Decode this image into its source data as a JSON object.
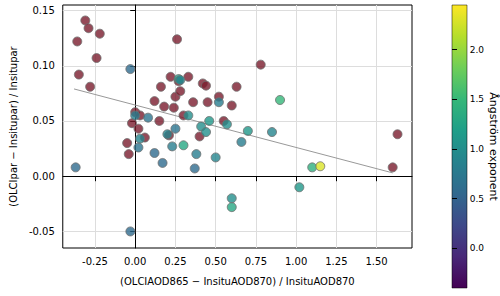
{
  "chart_data": {
    "type": "scatter",
    "x_label": "(OLCIAOD865 − InsituAOD870) / InsituAOD870",
    "y_label": "(OLCIpar − Insitupar) / Insitupar",
    "xlim": [
      -0.45,
      1.72
    ],
    "xticks": [
      -0.25,
      {
        "value": 0,
        "label": "0.00"
      },
      0.25,
      {
        "value": 0.5,
        "label": "0.50"
      },
      0.75,
      {
        "value": 1,
        "label": "1.00"
      },
      1.25,
      {
        "value": 1.5,
        "label": "1.50"
      }
    ],
    "ylim": [
      -0.065,
      0.155
    ],
    "yticks": [
      -0.05,
      {
        "value": 0,
        "label": "0.00"
      },
      0.05,
      {
        "value": 0.1,
        "label": "0.10"
      },
      0.15
    ],
    "grid": true,
    "colorbar": {
      "title": "Ångström exponent",
      "range": [
        -0.4,
        2.45
      ],
      "ticks": [
        {
          "value": 0,
          "label": "0.0"
        },
        {
          "value": 0.5,
          "label": "0.5"
        },
        {
          "value": 1,
          "label": "1.0"
        },
        {
          "value": 1.5,
          "label": "1.5"
        },
        {
          "value": 2,
          "label": "2.0"
        }
      ],
      "colors": [
        "#440154",
        "#482878",
        "#3e4989",
        "#31688e",
        "#26828e",
        "#1f9e89",
        "#35b779",
        "#6ece58",
        "#b5de2b",
        "#fde725"
      ]
    },
    "series": [
      {
        "type": "scatter",
        "color": "#7b1d2e",
        "x": [
          -0.36,
          -0.35,
          -0.31,
          -0.29,
          -0.28,
          -0.22,
          -0.24,
          -0.05,
          -0.04,
          -0.02,
          0.0,
          0.02,
          0.03,
          0.06,
          0.12,
          0.15,
          0.16,
          0.18,
          0.22,
          0.24,
          0.25,
          0.26,
          0.27,
          0.28,
          0.3,
          0.33,
          0.36,
          0.42,
          0.44,
          0.45,
          0.52,
          0.55,
          0.6,
          0.63,
          0.78,
          1.6,
          1.63,
          0.4,
          0.21
        ],
        "y": [
          0.122,
          0.092,
          0.141,
          0.134,
          0.081,
          0.129,
          0.107,
          0.03,
          0.02,
          0.048,
          0.058,
          0.043,
          0.055,
          0.035,
          0.068,
          0.05,
          0.081,
          0.063,
          0.09,
          0.062,
          0.072,
          0.124,
          0.086,
          0.077,
          0.055,
          0.09,
          0.067,
          0.084,
          0.082,
          0.067,
          0.072,
          0.05,
          0.064,
          0.081,
          0.101,
          0.008,
          0.038,
          0.036,
          0.037
        ]
      },
      {
        "type": "scatter",
        "x": [
          -0.37,
          -0.03,
          -0.03,
          0.0,
          0.02,
          0.03,
          0.08,
          0.12,
          0.17,
          0.2,
          0.23,
          0.25,
          0.27,
          0.28,
          0.3,
          0.33,
          0.37,
          0.38,
          0.41,
          0.44,
          0.46,
          0.5,
          0.52,
          0.57,
          0.6,
          0.6,
          0.66,
          0.7,
          0.85,
          0.9,
          1.02,
          1.1,
          1.15
        ],
        "y": [
          0.008,
          0.097,
          -0.05,
          0.055,
          0.026,
          0.034,
          0.053,
          0.021,
          0.012,
          0.038,
          0.027,
          0.043,
          0.088,
          0.087,
          0.028,
          0.055,
          0.007,
          0.02,
          0.045,
          0.04,
          0.05,
          0.017,
          0.067,
          0.047,
          -0.02,
          -0.028,
          0.031,
          0.041,
          0.04,
          0.069,
          -0.01,
          0.008,
          0.009
        ],
        "angstrom": [
          0.6,
          0.6,
          0.6,
          0.8,
          0.7,
          0.9,
          0.7,
          0.6,
          0.6,
          0.9,
          0.8,
          0.7,
          1.2,
          0.9,
          1.3,
          1.0,
          0.6,
          0.8,
          1.0,
          1.0,
          1.1,
          0.9,
          0.8,
          1.0,
          1.0,
          1.3,
          0.8,
          1.1,
          0.9,
          1.5,
          1.1,
          1.4,
          2.3
        ]
      },
      {
        "type": "line",
        "color": "#999999",
        "x": [
          -0.38,
          1.6
        ],
        "y": [
          0.079,
          0.003
        ]
      }
    ]
  }
}
